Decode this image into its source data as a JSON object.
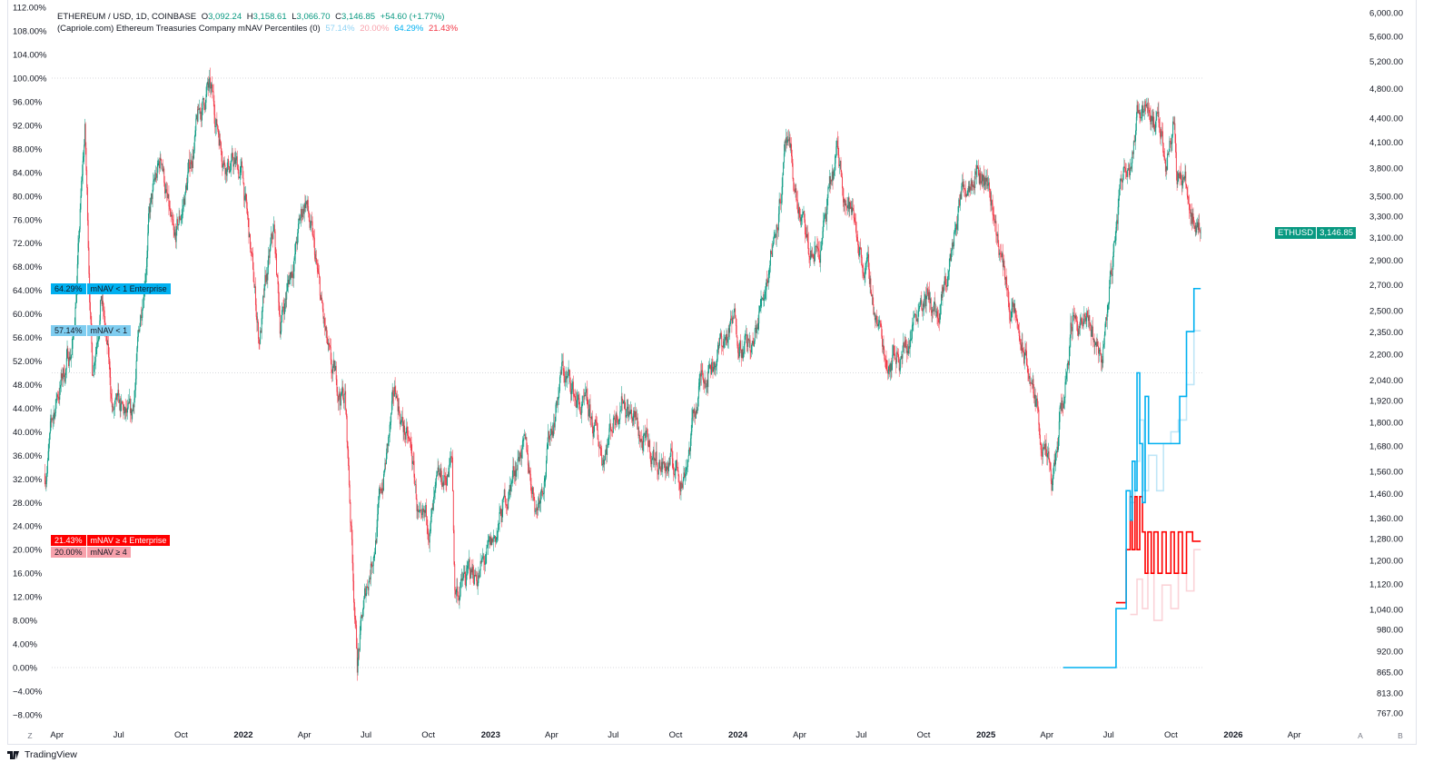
{
  "legend": {
    "symbol": "ETHEREUM / USD, 1D, COINBASE",
    "open_label": "O",
    "open": "3,092.24",
    "high_label": "H",
    "high": "3,158.61",
    "low_label": "L",
    "low": "3,066.70",
    "close_label": "C",
    "close": "3,146.85",
    "change": "+54.60 (+1.77%)",
    "indicator": "(Capriole.com) Ethereum Treasuries Company mNAV Percentiles (0)",
    "values": [
      "57.14%",
      "20.00%",
      "64.29%",
      "21.43%"
    ]
  },
  "tags": [
    {
      "value": "64.29%",
      "label": "mNAV < 1 Enterprise",
      "color": "#00b0f0",
      "text": "#131722"
    },
    {
      "value": "57.14%",
      "label": "mNAV < 1",
      "color": "#7fcdf0",
      "text": "#131722"
    },
    {
      "value": "21.43%",
      "label": "mNAV ≥ 4 Enterprise",
      "color": "#ff0000",
      "text": "#ffffff"
    },
    {
      "value": "20.00%",
      "label": "mNAV ≥ 4",
      "color": "#f7a1ab",
      "text": "#131722"
    }
  ],
  "price_tag": {
    "symbol": "ETHUSD",
    "value": "3,146.85"
  },
  "footer": {
    "brand": "TradingView"
  },
  "buttons": {
    "zoom": "Z",
    "auto": "A",
    "log": "B"
  },
  "colors": {
    "up": "#089981",
    "down": "#f23645",
    "enterprise_lt1": "#00b0f0",
    "lt1": "#bfe6f7",
    "enterprise_ge4": "#ff0000",
    "ge4": "#fbd3d8"
  },
  "chart_data": {
    "type": "candlestick+line",
    "left_axis": {
      "label_format": "percent",
      "range": [
        -8,
        112
      ],
      "ticks": [
        "112.00%",
        "108.00%",
        "104.00%",
        "100.00%",
        "96.00%",
        "92.00%",
        "88.00%",
        "84.00%",
        "80.00%",
        "76.00%",
        "72.00%",
        "68.00%",
        "64.00%",
        "60.00%",
        "56.00%",
        "52.00%",
        "48.00%",
        "44.00%",
        "40.00%",
        "36.00%",
        "32.00%",
        "28.00%",
        "24.00%",
        "20.00%",
        "16.00%",
        "12.00%",
        "8.00%",
        "4.00%",
        "0.00%",
        "−4.00%",
        "−8.00%"
      ],
      "reference_lines": [
        100,
        50,
        0
      ]
    },
    "right_axis": {
      "scale": "log",
      "range": [
        740,
        6300
      ],
      "ticks": [
        "6,000.00",
        "5,600.00",
        "5,200.00",
        "4,800.00",
        "4,400.00",
        "4,100.00",
        "3,800.00",
        "3,500.00",
        "3,300.00",
        "3,100.00",
        "2,900.00",
        "2,700.00",
        "2,500.00",
        "2,350.00",
        "2,200.00",
        "2,040.00",
        "1,920.00",
        "1,800.00",
        "1,680.00",
        "1,560.00",
        "1,460.00",
        "1,360.00",
        "1,280.00",
        "1,200.00",
        "1,120.00",
        "1,040.00",
        "980.00",
        "920.00",
        "865.00",
        "813.00",
        "767.00"
      ]
    },
    "x_axis": {
      "ticks": [
        {
          "label": "Apr",
          "date": "2021-04-01",
          "bold": false
        },
        {
          "label": "Jul",
          "date": "2021-07-01",
          "bold": false
        },
        {
          "label": "Oct",
          "date": "2021-10-01",
          "bold": false
        },
        {
          "label": "2022",
          "date": "2022-01-01",
          "bold": true
        },
        {
          "label": "Apr",
          "date": "2022-04-01",
          "bold": false
        },
        {
          "label": "Jul",
          "date": "2022-07-01",
          "bold": false
        },
        {
          "label": "Oct",
          "date": "2022-10-01",
          "bold": false
        },
        {
          "label": "2023",
          "date": "2023-01-01",
          "bold": true
        },
        {
          "label": "Apr",
          "date": "2023-04-01",
          "bold": false
        },
        {
          "label": "Jul",
          "date": "2023-07-01",
          "bold": false
        },
        {
          "label": "Oct",
          "date": "2023-10-01",
          "bold": false
        },
        {
          "label": "2024",
          "date": "2024-01-01",
          "bold": true
        },
        {
          "label": "Apr",
          "date": "2024-04-01",
          "bold": false
        },
        {
          "label": "Jul",
          "date": "2024-07-01",
          "bold": false
        },
        {
          "label": "Oct",
          "date": "2024-10-01",
          "bold": false
        },
        {
          "label": "2025",
          "date": "2025-01-01",
          "bold": true
        },
        {
          "label": "Apr",
          "date": "2025-04-01",
          "bold": false
        },
        {
          "label": "Jul",
          "date": "2025-07-01",
          "bold": false
        },
        {
          "label": "Oct",
          "date": "2025-10-01",
          "bold": false
        },
        {
          "label": "2026",
          "date": "2026-01-01",
          "bold": true
        },
        {
          "label": "Apr",
          "date": "2026-04-01",
          "bold": false
        }
      ]
    },
    "price_series": {
      "name": "ETHUSD",
      "points": [
        [
          "2021-03-14",
          1550
        ],
        [
          "2021-04-01",
          1950
        ],
        [
          "2021-04-25",
          2300
        ],
        [
          "2021-05-12",
          4200
        ],
        [
          "2021-05-23",
          2100
        ],
        [
          "2021-06-05",
          2700
        ],
        [
          "2021-06-22",
          1850
        ],
        [
          "2021-07-20",
          1750
        ],
        [
          "2021-08-14",
          3300
        ],
        [
          "2021-09-03",
          3900
        ],
        [
          "2021-09-21",
          2900
        ],
        [
          "2021-10-21",
          4150
        ],
        [
          "2021-11-09",
          4800
        ],
        [
          "2021-12-04",
          4000
        ],
        [
          "2021-12-31",
          3700
        ],
        [
          "2022-01-24",
          2300
        ],
        [
          "2022-02-15",
          3100
        ],
        [
          "2022-02-24",
          2400
        ],
        [
          "2022-04-03",
          3500
        ],
        [
          "2022-05-11",
          2000
        ],
        [
          "2022-05-31",
          1950
        ],
        [
          "2022-06-18",
          900
        ],
        [
          "2022-07-05",
          1150
        ],
        [
          "2022-08-14",
          1950
        ],
        [
          "2022-09-07",
          1600
        ],
        [
          "2022-09-21",
          1250
        ],
        [
          "2022-11-05",
          1600
        ],
        [
          "2022-11-09",
          1100
        ],
        [
          "2022-12-31",
          1200
        ],
        [
          "2023-02-15",
          1700
        ],
        [
          "2023-03-10",
          1420
        ],
        [
          "2023-04-16",
          2100
        ],
        [
          "2023-06-15",
          1650
        ],
        [
          "2023-07-14",
          2000
        ],
        [
          "2023-08-18",
          1650
        ],
        [
          "2023-10-12",
          1550
        ],
        [
          "2023-11-10",
          2100
        ],
        [
          "2023-12-28",
          2400
        ],
        [
          "2024-01-23",
          2200
        ],
        [
          "2024-02-29",
          3400
        ],
        [
          "2024-03-12",
          4000
        ],
        [
          "2024-04-15",
          2900
        ],
        [
          "2024-05-01",
          3000
        ],
        [
          "2024-05-27",
          3900
        ],
        [
          "2024-07-05",
          2900
        ],
        [
          "2024-08-05",
          2200
        ],
        [
          "2024-09-06",
          2250
        ],
        [
          "2024-09-27",
          2700
        ],
        [
          "2024-10-25",
          2400
        ],
        [
          "2024-11-25",
          3500
        ],
        [
          "2024-12-16",
          4000
        ],
        [
          "2025-01-06",
          3600
        ],
        [
          "2025-02-03",
          2600
        ],
        [
          "2025-03-10",
          2000
        ],
        [
          "2025-04-09",
          1450
        ],
        [
          "2025-05-10",
          2500
        ],
        [
          "2025-06-22",
          2200
        ],
        [
          "2025-07-20",
          3700
        ],
        [
          "2025-08-24",
          4800
        ],
        [
          "2025-09-25",
          3900
        ],
        [
          "2025-10-06",
          4600
        ],
        [
          "2025-10-10",
          3800
        ],
        [
          "2025-11-04",
          3300
        ],
        [
          "2025-11-14",
          3146.85
        ]
      ]
    },
    "percentile_series": [
      {
        "name": "mNAV < 1 Enterprise",
        "color": "#00b0f0",
        "points": [
          [
            "2025-04-25",
            0
          ],
          [
            "2025-07-10",
            0
          ],
          [
            "2025-07-12",
            10
          ],
          [
            "2025-07-26",
            10
          ],
          [
            "2025-07-27",
            30
          ],
          [
            "2025-08-02",
            25
          ],
          [
            "2025-08-05",
            35
          ],
          [
            "2025-08-09",
            30
          ],
          [
            "2025-08-12",
            50
          ],
          [
            "2025-08-16",
            38
          ],
          [
            "2025-08-20",
            28
          ],
          [
            "2025-08-24",
            46
          ],
          [
            "2025-08-29",
            38
          ],
          [
            "2025-10-12",
            38
          ],
          [
            "2025-10-14",
            46
          ],
          [
            "2025-10-22",
            46
          ],
          [
            "2025-10-24",
            57
          ],
          [
            "2025-11-02",
            57
          ],
          [
            "2025-11-04",
            64.29
          ],
          [
            "2025-11-14",
            64.29
          ]
        ]
      },
      {
        "name": "mNAV < 1",
        "color": "#bfe6f7",
        "points": [
          [
            "2025-08-02",
            28
          ],
          [
            "2025-08-09",
            35
          ],
          [
            "2025-08-16",
            42
          ],
          [
            "2025-08-22",
            30
          ],
          [
            "2025-08-29",
            36
          ],
          [
            "2025-09-10",
            30
          ],
          [
            "2025-09-20",
            38
          ],
          [
            "2025-10-01",
            40
          ],
          [
            "2025-10-12",
            42
          ],
          [
            "2025-10-24",
            48
          ],
          [
            "2025-11-04",
            57.14
          ],
          [
            "2025-11-14",
            57.14
          ]
        ]
      },
      {
        "name": "mNAV ≥ 4 Enterprise",
        "color": "#ff0000",
        "points": [
          [
            "2025-07-12",
            11
          ],
          [
            "2025-07-26",
            11
          ],
          [
            "2025-07-27",
            20
          ],
          [
            "2025-08-02",
            29
          ],
          [
            "2025-08-05",
            20
          ],
          [
            "2025-08-09",
            29
          ],
          [
            "2025-08-12",
            20
          ],
          [
            "2025-08-16",
            29
          ],
          [
            "2025-08-20",
            23
          ],
          [
            "2025-08-24",
            16
          ],
          [
            "2025-08-28",
            23
          ],
          [
            "2025-09-02",
            16
          ],
          [
            "2025-09-06",
            23
          ],
          [
            "2025-09-12",
            16
          ],
          [
            "2025-09-18",
            23
          ],
          [
            "2025-09-24",
            16
          ],
          [
            "2025-10-01",
            23
          ],
          [
            "2025-10-06",
            16
          ],
          [
            "2025-10-12",
            23
          ],
          [
            "2025-10-18",
            16
          ],
          [
            "2025-10-24",
            23
          ],
          [
            "2025-11-02",
            21.43
          ],
          [
            "2025-11-14",
            21.43
          ]
        ]
      },
      {
        "name": "mNAV ≥ 4",
        "color": "#fbd3d8",
        "points": [
          [
            "2025-08-02",
            9
          ],
          [
            "2025-08-12",
            15
          ],
          [
            "2025-08-20",
            10
          ],
          [
            "2025-08-28",
            16
          ],
          [
            "2025-09-06",
            8
          ],
          [
            "2025-09-18",
            14
          ],
          [
            "2025-10-01",
            10
          ],
          [
            "2025-10-12",
            16
          ],
          [
            "2025-10-24",
            13
          ],
          [
            "2025-11-04",
            20
          ],
          [
            "2025-11-14",
            20
          ]
        ]
      }
    ]
  }
}
